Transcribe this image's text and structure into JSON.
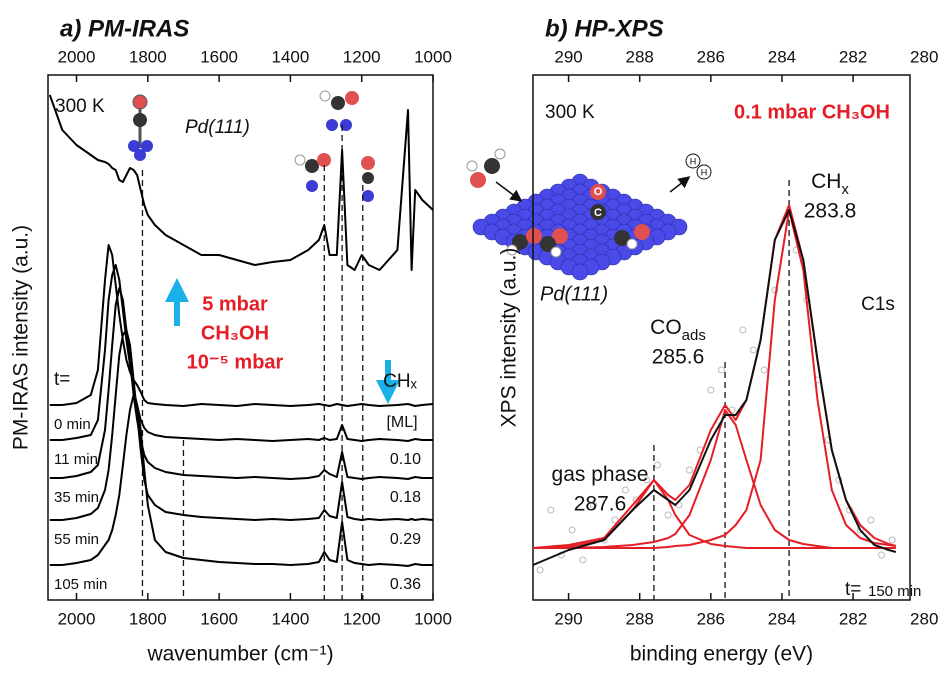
{
  "chart_data": [
    {
      "type": "line",
      "title": "a) PM-IRAS",
      "xlabel": "wavenumber (cm⁻¹)",
      "ylabel": "PM-IRAS intensity (a.u.)",
      "xlim": [
        2080,
        1000
      ],
      "xticks": [
        2000,
        1800,
        1600,
        1400,
        1200,
        1000
      ],
      "ylim": [
        0,
        525
      ],
      "top_tick_labels": true,
      "x": [
        2075,
        2040,
        2000,
        1960,
        1940,
        1920,
        1910,
        1900,
        1890,
        1880,
        1870,
        1860,
        1850,
        1840,
        1830,
        1820,
        1810,
        1800,
        1780,
        1750,
        1700,
        1650,
        1600,
        1550,
        1500,
        1450,
        1400,
        1350,
        1320,
        1305,
        1290,
        1270,
        1255,
        1240,
        1220,
        1200,
        1180,
        1150,
        1100,
        1070,
        1060,
        1050,
        1030,
        1000
      ],
      "series": [
        {
          "color": "#000000",
          "values": [
            505,
            470,
            455,
            445,
            440,
            438,
            436,
            432,
            430,
            420,
            418,
            425,
            432,
            430,
            425,
            410,
            395,
            385,
            375,
            365,
            355,
            345,
            345,
            340,
            335,
            338,
            340,
            350,
            360,
            375,
            345,
            345,
            450,
            335,
            330,
            345,
            335,
            330,
            350,
            490,
            330,
            410,
            400,
            390
          ]
        },
        {
          "name": "0 min",
          "color": "#000000",
          "values": [
            195,
            195,
            197,
            205,
            230,
            320,
            355,
            345,
            315,
            285,
            260,
            240,
            228,
            220,
            215,
            208,
            200,
            197,
            196,
            195,
            194,
            196,
            195,
            194,
            196,
            195,
            194,
            195,
            196,
            195,
            194,
            196,
            195,
            194,
            195,
            196,
            195,
            194,
            195,
            196,
            195,
            194,
            195,
            196
          ]
        },
        {
          "name": "11 min",
          "coverage": "0.10",
          "color": "#000000",
          "values": [
            160,
            160,
            162,
            165,
            180,
            250,
            300,
            325,
            335,
            320,
            290,
            260,
            235,
            210,
            195,
            180,
            172,
            168,
            165,
            163,
            162,
            161,
            160,
            161,
            160,
            159,
            160,
            161,
            160,
            162,
            160,
            161,
            175,
            161,
            160,
            159,
            160,
            161,
            160,
            159,
            160,
            161,
            160,
            160
          ]
        },
        {
          "name": "35 min",
          "coverage": "0.18",
          "color": "#000000",
          "values": [
            122,
            122,
            124,
            128,
            135,
            170,
            210,
            255,
            295,
            312,
            300,
            270,
            240,
            205,
            180,
            160,
            145,
            138,
            132,
            128,
            125,
            124,
            123,
            122,
            123,
            122,
            121,
            122,
            124,
            130,
            126,
            123,
            148,
            123,
            122,
            121,
            122,
            123,
            122,
            121,
            122,
            123,
            122,
            122
          ]
        },
        {
          "name": "55 min",
          "coverage": "0.29",
          "color": "#000000",
          "values": [
            80,
            80,
            82,
            86,
            92,
            110,
            130,
            165,
            205,
            245,
            265,
            270,
            255,
            220,
            185,
            150,
            120,
            105,
            95,
            88,
            85,
            83,
            82,
            81,
            80,
            81,
            80,
            81,
            82,
            90,
            84,
            82,
            118,
            83,
            81,
            80,
            81,
            80,
            81,
            80,
            81,
            80,
            81,
            80
          ]
        },
        {
          "name": "105 min",
          "coverage": "0.36",
          "color": "#000000",
          "values": [
            35,
            35,
            37,
            40,
            45,
            55,
            60,
            70,
            85,
            105,
            135,
            165,
            190,
            205,
            195,
            170,
            130,
            95,
            60,
            48,
            42,
            40,
            38,
            37,
            36,
            36,
            35,
            36,
            38,
            48,
            40,
            38,
            78,
            40,
            37,
            36,
            35,
            36,
            35,
            34,
            35,
            36,
            35,
            35
          ]
        }
      ],
      "markers": [
        1815,
        1700,
        1305,
        1255,
        1197
      ],
      "annotations": {
        "temperature": "300 K",
        "surface": "Pd(111)",
        "pressure_high": "5 mbar",
        "gas": "CH₃OH",
        "pressure_low": "10⁻⁵ mbar",
        "time_label": "t=",
        "coverage_label": "CHₓ",
        "coverage_unit": "[ML]"
      }
    },
    {
      "type": "line",
      "title": "b) HP-XPS",
      "xlabel": "binding energy (eV)",
      "ylabel": "XPS intensity (a.u.)",
      "xlim": [
        291,
        280.4
      ],
      "xticks": [
        290,
        288,
        286,
        284,
        282,
        280
      ],
      "ylim": [
        0,
        525
      ],
      "top_tick_labels": true,
      "x": [
        291,
        290,
        289,
        288.2,
        287.6,
        287.2,
        287,
        286.6,
        286,
        285.6,
        285.3,
        285,
        284.6,
        284.2,
        283.8,
        283.4,
        283,
        282.6,
        282.2,
        281.8,
        281.4,
        281,
        280.8
      ],
      "series": [
        {
          "color": "#e41e26",
          "values": [
            52,
            53,
            60,
            90,
            120,
            100,
            85,
            65,
            56,
            54,
            53,
            52,
            52,
            52,
            52,
            52,
            52,
            52,
            52,
            52,
            52,
            52,
            52
          ]
        },
        {
          "color": "#e41e26",
          "values": [
            52,
            52,
            53,
            55,
            58,
            62,
            66,
            85,
            140,
            190,
            175,
            140,
            95,
            70,
            60,
            56,
            54,
            52,
            52,
            52,
            52,
            52,
            52
          ]
        },
        {
          "color": "#e41e26",
          "values": [
            52,
            52,
            52,
            52,
            52,
            53,
            54,
            55,
            60,
            65,
            75,
            90,
            140,
            300,
            390,
            330,
            200,
            110,
            75,
            62,
            57,
            55,
            54
          ]
        },
        {
          "color": "#e41e26",
          "values": [
            52,
            55,
            62,
            95,
            120,
            105,
            100,
            115,
            170,
            195,
            180,
            200,
            260,
            360,
            395,
            340,
            240,
            150,
            100,
            75,
            62,
            56,
            54
          ]
        },
        {
          "color": "#111111",
          "values": [
            35,
            50,
            60,
            90,
            110,
            100,
            95,
            110,
            160,
            185,
            185,
            200,
            260,
            360,
            390,
            340,
            240,
            150,
            100,
            70,
            55,
            50,
            48
          ]
        }
      ],
      "points": {
        "color": "#bbbbbb",
        "x": [
          290.8,
          290.5,
          290.2,
          289.9,
          289.6,
          289.3,
          289,
          288.7,
          288.4,
          288.1,
          287.8,
          287.5,
          287.2,
          286.9,
          286.6,
          286.3,
          286,
          285.7,
          285.4,
          285.1,
          284.8,
          284.5,
          284.2,
          283.9,
          283.6,
          283.3,
          283,
          282.7,
          282.4,
          282.1,
          281.8,
          281.5,
          281.2,
          280.9
        ],
        "y": [
          30,
          90,
          45,
          70,
          40,
          95,
          60,
          80,
          110,
          100,
          120,
          135,
          85,
          95,
          130,
          150,
          210,
          230,
          190,
          270,
          250,
          230,
          310,
          380,
          350,
          300,
          220,
          160,
          120,
          90,
          70,
          80,
          45,
          60
        ]
      },
      "peaks": [
        {
          "label": "gas phase",
          "position": 287.6
        },
        {
          "label": "CO",
          "label_sub": "ads",
          "position": 285.6
        },
        {
          "label": "CH",
          "label_sub": "x",
          "position": 283.8
        }
      ],
      "annotations": {
        "temperature": "300 K",
        "conditions": "0.1 mbar CH₃OH",
        "region": "C1s",
        "surface": "Pd(111)",
        "time_label": "t=",
        "time": "150 min",
        "atom_o": "O",
        "atom_c": "C",
        "atom_h1": "H",
        "atom_h2": "H"
      }
    }
  ]
}
